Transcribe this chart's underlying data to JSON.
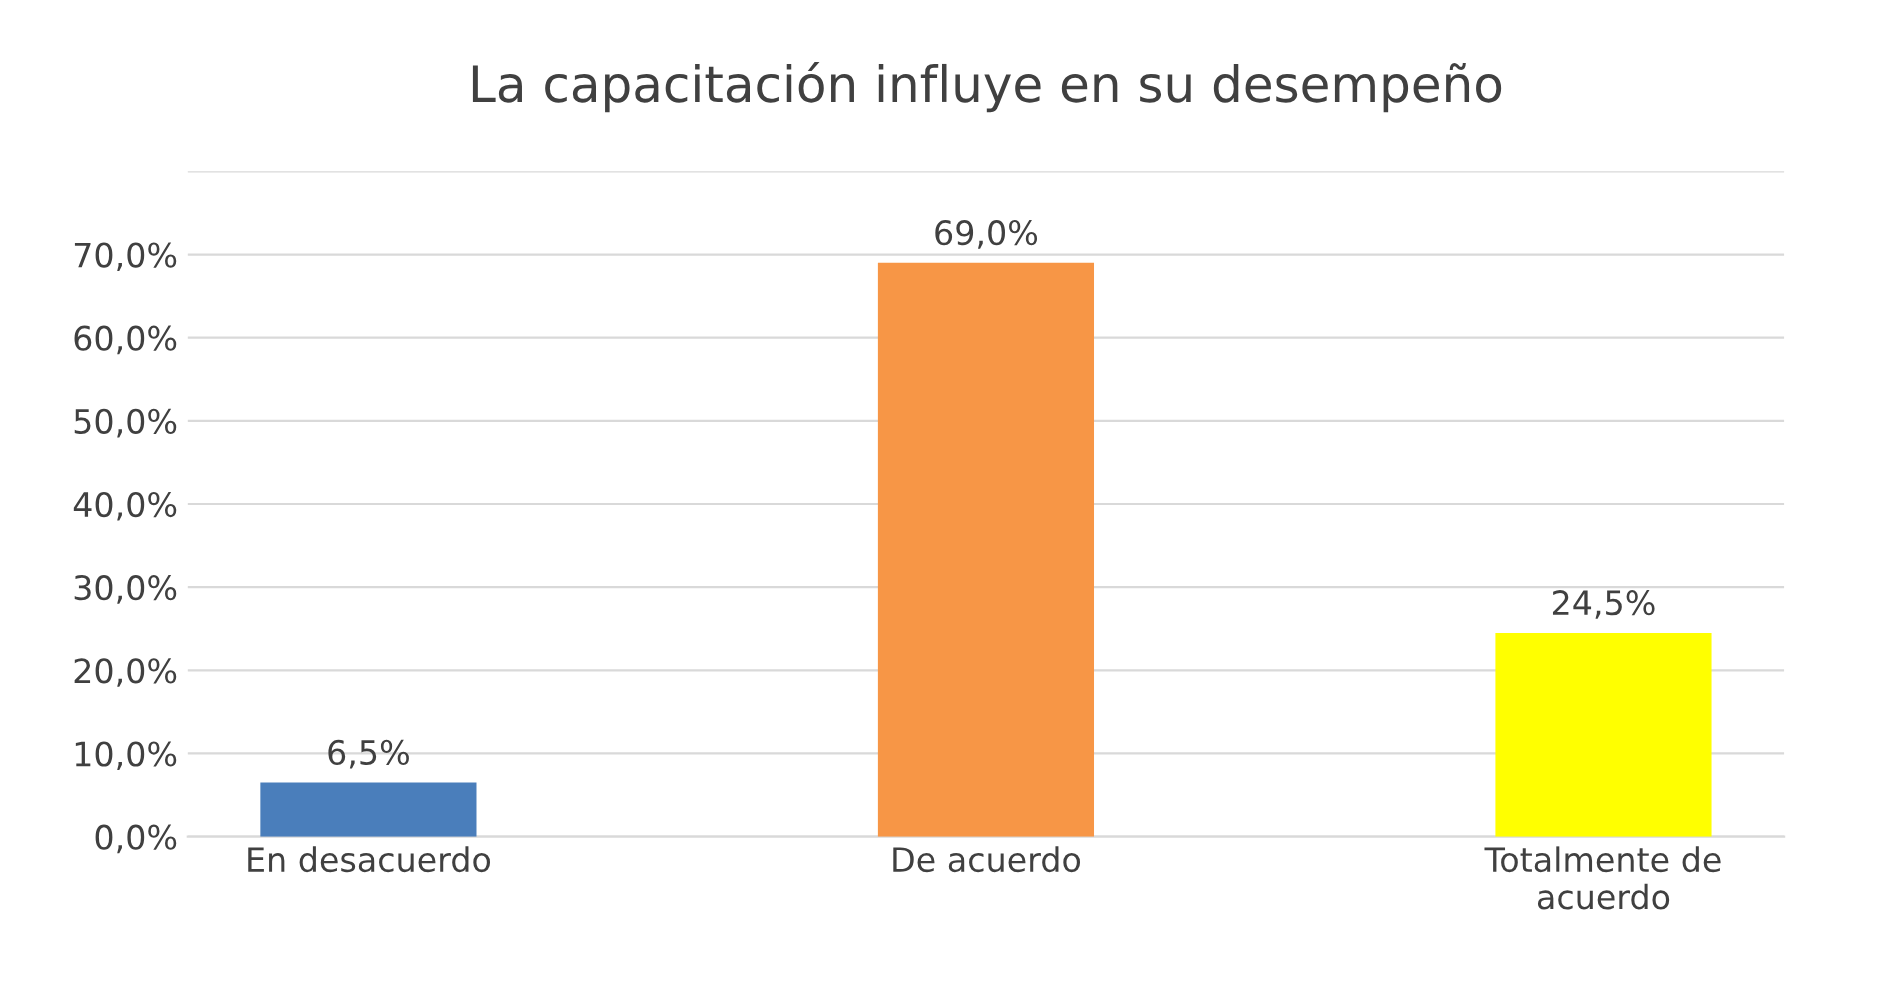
{
  "chart_data": {
    "type": "bar",
    "title": "La capacitación influye en su desempeño",
    "categories": [
      "En desacuerdo",
      "De acuerdo",
      "Totalmente de\nacuerdo"
    ],
    "values": [
      6.5,
      69.0,
      24.5
    ],
    "colors": [
      "#4a7ebb",
      "#f79646",
      "#ffff00"
    ],
    "value_labels": [
      "6,5%",
      "69,0%",
      "24,5%"
    ],
    "ylim": [
      0,
      80
    ],
    "yticks": [
      {
        "value": 0,
        "label": "0,0%"
      },
      {
        "value": 10,
        "label": "10,0%"
      },
      {
        "value": 20,
        "label": "20,0%"
      },
      {
        "value": 30,
        "label": "30,0%"
      },
      {
        "value": 40,
        "label": "40,0%"
      },
      {
        "value": 50,
        "label": "50,0%"
      },
      {
        "value": 60,
        "label": "60,0%"
      },
      {
        "value": 70,
        "label": "70,0%"
      },
      {
        "value": 80,
        "label": null
      }
    ],
    "grid": "y",
    "legend": false
  }
}
